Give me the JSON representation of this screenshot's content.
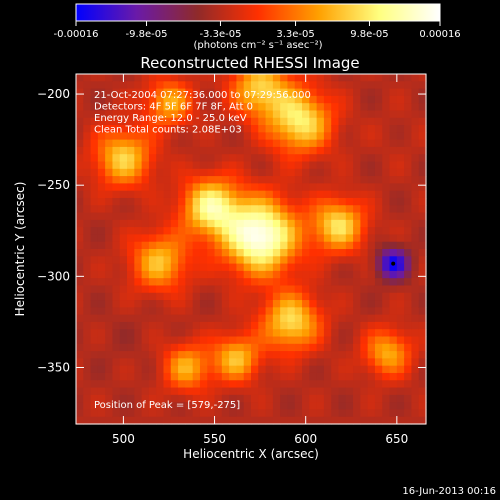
{
  "chart_data": {
    "type": "heatmap",
    "title": "Reconstructed RHESSI Image",
    "xlabel": "Heliocentric X (arcsec)",
    "ylabel": "Heliocentric Y (arcsec)",
    "xlim": [
      474,
      666
    ],
    "ylim": [
      -381,
      -189
    ],
    "x_ticks": [
      500,
      550,
      600,
      650
    ],
    "y_ticks": [
      -200,
      -250,
      -300,
      -350
    ],
    "colorbar": {
      "tick_labels": [
        "-0.00016",
        "-9.8e-05",
        "-3.3e-05",
        "3.3e-05",
        "9.8e-05",
        "0.00016"
      ],
      "tick_values": [
        -0.00016,
        -9.8e-05,
        -3.3e-05,
        3.3e-05,
        9.8e-05,
        0.00016
      ],
      "range": [
        -0.00016,
        0.00016
      ],
      "unit_label": "(photons cm⁻² s⁻¹ asec⁻²)",
      "colors": [
        "#0000ff",
        "#6a1aa8",
        "#8f2a2a",
        "#ff3000",
        "#ffa000",
        "#ffff80",
        "#ffffff"
      ]
    },
    "info_lines": [
      "21-Oct-2004 07:27:36.000 to 07:29:56.000",
      "Detectors: 4F 5F 6F 7F 8F, Att 0",
      "Energy Range: 12.0 - 25.0 keV",
      "Clean     Total counts: 2.08E+03"
    ],
    "peak_text": "Position of Peak = [579,-275]",
    "peak": {
      "x": 579,
      "y": -275
    },
    "peak_value": 0.00016,
    "image_sources": [
      {
        "x": 575,
        "y": -278,
        "value": 0.00016,
        "sigma": 14
      },
      {
        "x": 548,
        "y": -262,
        "value": 0.00011,
        "sigma": 11
      },
      {
        "x": 597,
        "y": -215,
        "value": 0.0001,
        "sigma": 12
      },
      {
        "x": 500,
        "y": -235,
        "value": 8e-05,
        "sigma": 11
      },
      {
        "x": 618,
        "y": -272,
        "value": 9e-05,
        "sigma": 10
      },
      {
        "x": 592,
        "y": -325,
        "value": 9e-05,
        "sigma": 11
      },
      {
        "x": 520,
        "y": -292,
        "value": 7e-05,
        "sigma": 11
      },
      {
        "x": 575,
        "y": -197,
        "value": 8e-05,
        "sigma": 11
      },
      {
        "x": 535,
        "y": -350,
        "value": 6e-05,
        "sigma": 9
      },
      {
        "x": 645,
        "y": -342,
        "value": 6e-05,
        "sigma": 9
      },
      {
        "x": 562,
        "y": -345,
        "value": 7e-05,
        "sigma": 9
      },
      {
        "x": 525,
        "y": -205,
        "value": 6e-05,
        "sigma": 9
      },
      {
        "x": 650,
        "y": -225,
        "value": -3e-05,
        "sigma": 12
      },
      {
        "x": 648,
        "y": -293,
        "value": -0.00015,
        "sigma": 6
      },
      {
        "x": 500,
        "y": -335,
        "value": -4e-05,
        "sigma": 13
      }
    ],
    "grid": false
  },
  "footer": {
    "timestamp": "16-Jun-2013 00:16"
  }
}
